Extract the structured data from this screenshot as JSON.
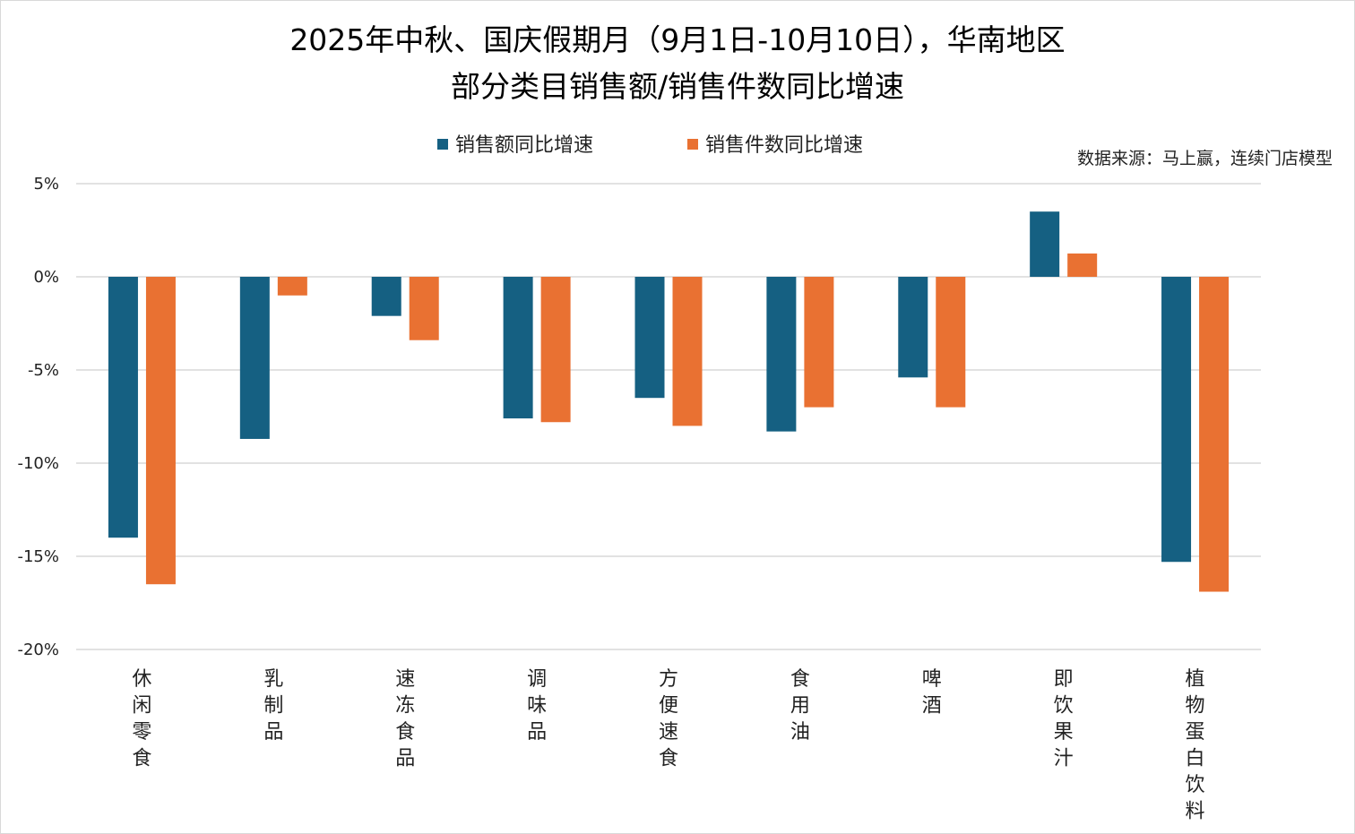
{
  "chart_data": {
    "type": "bar",
    "title": [
      "2025年中秋、国庆假期月（9月1日-10月10日），华南地区",
      "部分类目销售额/销售件数同比增速"
    ],
    "source": "数据来源：马上赢，连续门店模型",
    "categories": [
      "休闲零食",
      "乳制品",
      "速冻食品",
      "调味品",
      "方便速食",
      "食用油",
      "啤酒",
      "即饮果汁",
      "植物蛋白饮料"
    ],
    "series": [
      {
        "name": "销售额同比增速",
        "color": "#156082",
        "values": [
          -14.0,
          -8.7,
          -2.1,
          -7.6,
          -6.5,
          -8.3,
          -5.4,
          3.5,
          -15.3
        ]
      },
      {
        "name": "销售件数同比增速",
        "color": "#E97132",
        "values": [
          -16.5,
          -1.0,
          -3.4,
          -7.8,
          -8.0,
          -7.0,
          -7.0,
          1.25,
          -16.9
        ]
      }
    ],
    "ylim": [
      -20,
      5
    ],
    "yticks": [
      5,
      0,
      -5,
      -10,
      -15,
      -20
    ],
    "ytick_labels": [
      "5%",
      "0%",
      "-5%",
      "-10%",
      "-15%",
      "-20%"
    ],
    "grid": true,
    "legend": "top-center",
    "xlabel": "",
    "ylabel": ""
  }
}
